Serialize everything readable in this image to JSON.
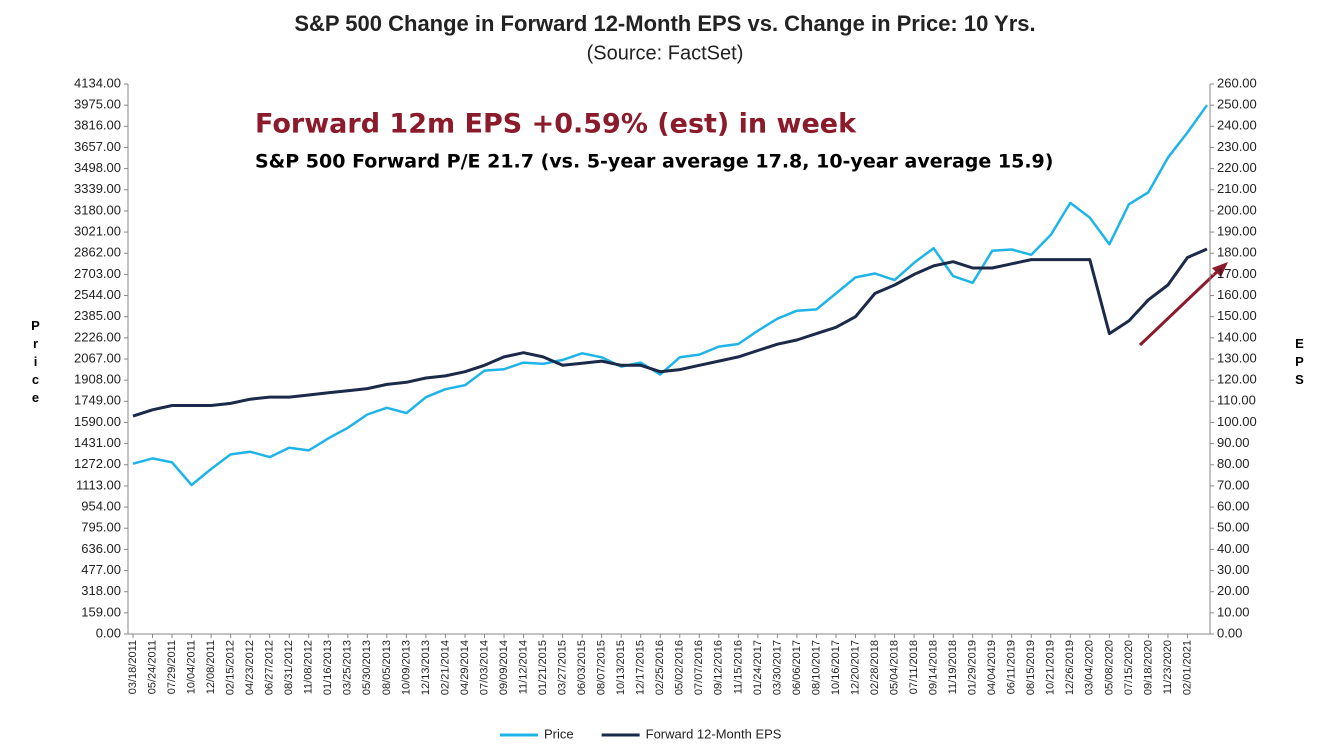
{
  "chart_data": {
    "type": "line",
    "title": "S&P 500 Change in Forward 12-Month EPS vs. Change in Price: 10 Yrs.",
    "subtitle": "(Source: FactSet)",
    "annotations": [
      "Forward 12m EPS +0.59% (est) in week",
      "S&P 500 Forward P/E 21.7 (vs. 5-year average 17.8, 10-year average 15.9)"
    ],
    "ylabel": "Price",
    "y2label": "EPS",
    "categories": [
      "03/18/2011",
      "05/24/2011",
      "07/29/2011",
      "10/04/2011",
      "12/08/2011",
      "02/15/2012",
      "04/23/2012",
      "06/27/2012",
      "08/31/2012",
      "11/08/2012",
      "01/16/2013",
      "03/25/2013",
      "05/30/2013",
      "08/05/2013",
      "10/09/2013",
      "12/13/2013",
      "02/21/2014",
      "04/29/2014",
      "07/03/2014",
      "09/09/2014",
      "11/12/2014",
      "01/21/2015",
      "03/27/2015",
      "06/03/2015",
      "08/07/2015",
      "10/13/2015",
      "12/17/2015",
      "02/25/2016",
      "05/02/2016",
      "07/07/2016",
      "09/12/2016",
      "11/15/2016",
      "01/24/2017",
      "03/30/2017",
      "06/06/2017",
      "08/10/2017",
      "10/16/2017",
      "12/20/2017",
      "02/28/2018",
      "05/04/2018",
      "07/11/2018",
      "09/14/2018",
      "11/19/2018",
      "01/29/2019",
      "04/04/2019",
      "06/11/2019",
      "08/15/2019",
      "10/21/2019",
      "12/26/2019",
      "03/04/2020",
      "05/08/2020",
      "07/15/2020",
      "09/18/2020",
      "11/23/2020",
      "02/01/2021",
      null
    ],
    "series": [
      {
        "name": "Price",
        "color": "#1fb4e8",
        "axis": "y",
        "values": [
          1280,
          1320,
          1290,
          1120,
          1240,
          1350,
          1370,
          1330,
          1400,
          1380,
          1470,
          1550,
          1650,
          1700,
          1660,
          1780,
          1840,
          1870,
          1980,
          1990,
          2040,
          2030,
          2060,
          2110,
          2080,
          2010,
          2040,
          1950,
          2080,
          2100,
          2160,
          2180,
          2280,
          2370,
          2430,
          2440,
          2560,
          2680,
          2710,
          2660,
          2790,
          2900,
          2690,
          2640,
          2880,
          2890,
          2850,
          3000,
          3240,
          3130,
          2930,
          3230,
          3320,
          3580,
          3770,
          3975
        ]
      },
      {
        "name": "Forward 12-Month EPS",
        "color": "#1c2a4a",
        "axis": "y2",
        "values": [
          103,
          106,
          108,
          108,
          108,
          109,
          111,
          112,
          112,
          113,
          114,
          115,
          116,
          118,
          119,
          121,
          122,
          124,
          127,
          131,
          133,
          131,
          127,
          128,
          129,
          127,
          127,
          124,
          125,
          127,
          129,
          131,
          134,
          137,
          139,
          142,
          145,
          150,
          161,
          165,
          170,
          174,
          176,
          173,
          173,
          175,
          177,
          177,
          177,
          177,
          142,
          148,
          158,
          165,
          178,
          182
        ]
      }
    ],
    "ylim": [
      0,
      4134
    ],
    "yticks": [
      {
        "value": 0,
        "label": "0.00"
      },
      {
        "value": 159,
        "label": "159.00"
      },
      {
        "value": 318,
        "label": "318.00"
      },
      {
        "value": 477,
        "label": "477.00"
      },
      {
        "value": 636,
        "label": "636.00"
      },
      {
        "value": 795,
        "label": "795.00"
      },
      {
        "value": 954,
        "label": "954.00"
      },
      {
        "value": 1113,
        "label": "1113.00"
      },
      {
        "value": 1272,
        "label": "1272.00"
      },
      {
        "value": 1431,
        "label": "1431.00"
      },
      {
        "value": 1590,
        "label": "1590.00"
      },
      {
        "value": 1749,
        "label": "1749.00"
      },
      {
        "value": 1908,
        "label": "1908.00"
      },
      {
        "value": 2067,
        "label": "2067.00"
      },
      {
        "value": 2226,
        "label": "2226.00"
      },
      {
        "value": 2385,
        "label": "2385.00"
      },
      {
        "value": 2544,
        "label": "2544.00"
      },
      {
        "value": 2703,
        "label": "2703.00"
      },
      {
        "value": 2862,
        "label": "2862.00"
      },
      {
        "value": 3021,
        "label": "3021.00"
      },
      {
        "value": 3180,
        "label": "3180.00"
      },
      {
        "value": 3339,
        "label": "3339.00"
      },
      {
        "value": 3498,
        "label": "3498.00"
      },
      {
        "value": 3657,
        "label": "3657.00"
      },
      {
        "value": 3816,
        "label": "3816.00"
      },
      {
        "value": 3975,
        "label": "3975.00"
      },
      {
        "value": 4134,
        "label": "4134.00"
      }
    ],
    "y2lim": [
      0,
      260
    ],
    "y2ticks": [
      {
        "value": 0,
        "label": "0.00"
      },
      {
        "value": 10,
        "label": "10.00"
      },
      {
        "value": 20,
        "label": "20.00"
      },
      {
        "value": 30,
        "label": "30.00"
      },
      {
        "value": 40,
        "label": "40.00"
      },
      {
        "value": 50,
        "label": "50.00"
      },
      {
        "value": 60,
        "label": "60.00"
      },
      {
        "value": 70,
        "label": "70.00"
      },
      {
        "value": 80,
        "label": "80.00"
      },
      {
        "value": 90,
        "label": "90.00"
      },
      {
        "value": 100,
        "label": "100.00"
      },
      {
        "value": 110,
        "label": "110.00"
      },
      {
        "value": 120,
        "label": "120.00"
      },
      {
        "value": 130,
        "label": "130.00"
      },
      {
        "value": 140,
        "label": "140.00"
      },
      {
        "value": 150,
        "label": "150.00"
      },
      {
        "value": 160,
        "label": "160.00"
      },
      {
        "value": 170,
        "label": "170.00"
      },
      {
        "value": 180,
        "label": "180.00"
      },
      {
        "value": 190,
        "label": "190.00"
      },
      {
        "value": 200,
        "label": "200.00"
      },
      {
        "value": 210,
        "label": "210.00"
      },
      {
        "value": 220,
        "label": "220.00"
      },
      {
        "value": 230,
        "label": "230.00"
      },
      {
        "value": 240,
        "label": "240.00"
      },
      {
        "value": 250,
        "label": "250.00"
      },
      {
        "value": 260,
        "label": "260.00"
      }
    ],
    "grid": false,
    "legend": "bottom"
  }
}
